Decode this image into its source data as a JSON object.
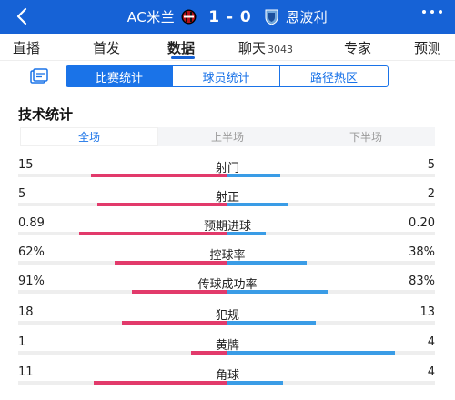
{
  "header": {
    "home_team": "AC米兰",
    "score": "1 - 0",
    "away_team": "恩波利",
    "colors": {
      "bar": "#1662d6",
      "home_badge": "#b5121b",
      "away_badge": "#6fa6dc"
    },
    "icons": [
      "chevron-left-icon",
      "ac-milan-crest-icon",
      "empoli-crest-icon",
      "more-dots-icon"
    ]
  },
  "tabs": [
    {
      "label": "直播"
    },
    {
      "label": "首发"
    },
    {
      "label": "数据",
      "active": true
    },
    {
      "label": "聊天",
      "count": "3043"
    },
    {
      "label": "专家"
    },
    {
      "label": "预测"
    }
  ],
  "segments": [
    {
      "label": "比赛统计",
      "active": true
    },
    {
      "label": "球员统计"
    },
    {
      "label": "路径热区"
    }
  ],
  "section_title": "技术统计",
  "periods": [
    {
      "label": "全场",
      "active": true
    },
    {
      "label": "上半场"
    },
    {
      "label": "下半场"
    }
  ],
  "colors": {
    "home": "#e23a6b",
    "away": "#3a9ce6",
    "accent": "#1a73e8"
  },
  "stats": [
    {
      "name": "射门",
      "home": "15",
      "away": "5",
      "home_frac": 0.75,
      "away_frac": 0.25
    },
    {
      "name": "射正",
      "home": "5",
      "away": "2",
      "home_frac": 0.714,
      "away_frac": 0.286
    },
    {
      "name": "预期进球",
      "home": "0.89",
      "away": "0.20",
      "home_frac": 0.817,
      "away_frac": 0.183
    },
    {
      "name": "控球率",
      "home": "62%",
      "away": "38%",
      "home_frac": 0.62,
      "away_frac": 0.38
    },
    {
      "name": "传球成功率",
      "home": "91%",
      "away": "83%",
      "home_frac": 0.523,
      "away_frac": 0.477
    },
    {
      "name": "犯规",
      "home": "18",
      "away": "13",
      "home_frac": 0.58,
      "away_frac": 0.42
    },
    {
      "name": "黄牌",
      "home": "1",
      "away": "4",
      "home_frac": 0.2,
      "away_frac": 0.8
    },
    {
      "name": "角球",
      "home": "11",
      "away": "4",
      "home_frac": 0.733,
      "away_frac": 0.267
    }
  ]
}
